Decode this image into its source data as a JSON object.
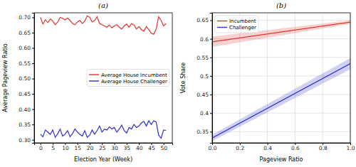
{
  "chart_data": [
    {
      "type": "line",
      "title": "(a)",
      "x_label": "Election Year (Week)",
      "y_label": "Average Pageview Ratio",
      "x": [
        0,
        1,
        2,
        3,
        4,
        5,
        6,
        7,
        8,
        9,
        10,
        11,
        12,
        13,
        14,
        15,
        16,
        17,
        18,
        19,
        20,
        21,
        22,
        23,
        24,
        25,
        26,
        27,
        28,
        29,
        30,
        31,
        32,
        33,
        34,
        35,
        36,
        37,
        38,
        39,
        40,
        41,
        42,
        43,
        44,
        45,
        46,
        47,
        48,
        49,
        50,
        51
      ],
      "series": [
        {
          "name": "Average House Incumbent",
          "color": "#e0342c",
          "values": [
            0.7,
            0.678,
            0.692,
            0.683,
            0.695,
            0.688,
            0.676,
            0.685,
            0.7,
            0.697,
            0.692,
            0.698,
            0.69,
            0.68,
            0.676,
            0.685,
            0.69,
            0.68,
            0.688,
            0.705,
            0.7,
            0.685,
            0.69,
            0.702,
            0.68,
            0.676,
            0.672,
            0.668,
            0.675,
            0.666,
            0.672,
            0.676,
            0.668,
            0.662,
            0.672,
            0.678,
            0.668,
            0.68,
            0.675,
            0.662,
            0.67,
            0.66,
            0.655,
            0.67,
            0.66,
            0.648,
            0.645,
            0.662,
            0.702,
            0.69,
            0.672,
            0.68
          ]
        },
        {
          "name": "Average House Challenger",
          "color": "#2f2fcc",
          "values": [
            0.318,
            0.31,
            0.332,
            0.325,
            0.318,
            0.332,
            0.308,
            0.32,
            0.335,
            0.312,
            0.318,
            0.33,
            0.31,
            0.32,
            0.335,
            0.325,
            0.318,
            0.312,
            0.33,
            0.308,
            0.315,
            0.332,
            0.318,
            0.33,
            0.345,
            0.325,
            0.335,
            0.332,
            0.342,
            0.335,
            0.34,
            0.325,
            0.335,
            0.348,
            0.33,
            0.322,
            0.34,
            0.335,
            0.35,
            0.34,
            0.345,
            0.355,
            0.36,
            0.345,
            0.362,
            0.35,
            0.362,
            0.358,
            0.315,
            0.305,
            0.332,
            0.33
          ]
        }
      ],
      "xlim": [
        -2.55,
        53.55
      ],
      "xticks": [
        0,
        5,
        10,
        15,
        20,
        25,
        30,
        35,
        40,
        45,
        50
      ],
      "ylim": [
        0.29,
        0.715
      ],
      "yticks": [
        {
          "value": 0.3,
          "label": "0.30"
        },
        {
          "value": 0.35,
          "label": "0.35"
        },
        {
          "value": 0.4,
          "label": "0.40"
        },
        {
          "value": 0.45,
          "label": "0.45"
        },
        {
          "value": 0.5,
          "label": "0.50"
        },
        {
          "value": 0.55,
          "label": "0.55"
        },
        {
          "value": 0.6,
          "label": "0.60"
        },
        {
          "value": 0.65,
          "label": "0.65"
        },
        {
          "value": 0.7,
          "label": "0.70"
        }
      ],
      "grid": false,
      "legend": "right"
    },
    {
      "type": "line",
      "title": "(b)",
      "x_label": "Pageview Ratio",
      "y_label": "Vote Share",
      "x": [
        0,
        1
      ],
      "series": [
        {
          "name": "Incumbent",
          "color": "#e0342c",
          "values": [
            0.592,
            0.645
          ],
          "lower": [
            0.578,
            0.64
          ],
          "upper": [
            0.606,
            0.65
          ]
        },
        {
          "name": "Challenger",
          "color": "#2f2fcc",
          "values": [
            0.333,
            0.533
          ],
          "lower": [
            0.325,
            0.518
          ],
          "upper": [
            0.342,
            0.548
          ]
        }
      ],
      "xlim": [
        0,
        1
      ],
      "xticks": [
        {
          "value": 0,
          "label": "0.0"
        },
        {
          "value": 0.2,
          "label": "0.2"
        },
        {
          "value": 0.4,
          "label": "0.4"
        },
        {
          "value": 0.6,
          "label": "0.6"
        },
        {
          "value": 0.8,
          "label": "0.8"
        },
        {
          "value": 1,
          "label": "1.0"
        }
      ],
      "ylim": [
        0.32,
        0.67
      ],
      "yticks": [
        0.35,
        0.4,
        0.45,
        0.5,
        0.55,
        0.6,
        0.65
      ],
      "grid": true,
      "legend": "upper left"
    }
  ]
}
